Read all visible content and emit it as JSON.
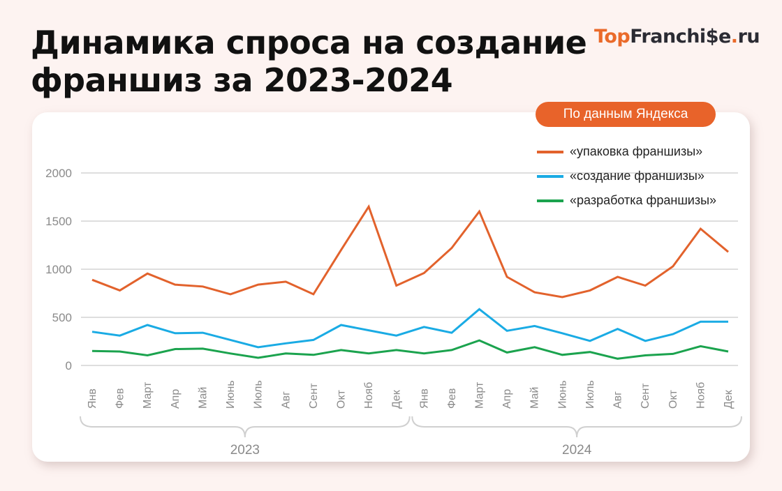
{
  "header": {
    "title_line1": "Динамика спроса на создание",
    "title_line2": "франшиз за 2023-2024"
  },
  "logo": {
    "part1": "Top",
    "part2": "Franchi",
    "part3": "e",
    "dot": ".",
    "tld": "ru",
    "full_text": "TopFranchise.ru"
  },
  "badge": {
    "label": "По данным Яндекса"
  },
  "colors": {
    "background": "#FDF3F1",
    "accent": "#E8632A",
    "series_orange": "#E2622C",
    "series_blue": "#1AABE4",
    "series_green": "#1BA34E",
    "grid": "#D4D4D4",
    "axis_text": "#8A8A8A"
  },
  "chart_data": {
    "type": "line",
    "title": "Динамика спроса на создание франшиз за 2023-2024",
    "subtitle": "По данным Яндекса",
    "xlabel": "",
    "ylabel": "",
    "ylim": [
      0,
      2000
    ],
    "yticks": [
      0,
      500,
      1000,
      1500,
      2000
    ],
    "grid": true,
    "legend_position": "top-right",
    "year_groups": [
      {
        "label": "2023",
        "from": 0,
        "to": 11
      },
      {
        "label": "2024",
        "from": 12,
        "to": 23
      }
    ],
    "categories": [
      "Янв",
      "Фев",
      "Март",
      "Апр",
      "Май",
      "Июнь",
      "Июль",
      "Авг",
      "Сент",
      "Окт",
      "Нояб",
      "Дек",
      "Янв",
      "Фев",
      "Март",
      "Апр",
      "Май",
      "Июнь",
      "Июль",
      "Авг",
      "Сент",
      "Окт",
      "Нояб",
      "Дек"
    ],
    "series": [
      {
        "name": "«упаковка франшизы»",
        "color": "#E2622C",
        "values": [
          890,
          780,
          955,
          840,
          820,
          740,
          840,
          870,
          740,
          1200,
          1650,
          830,
          960,
          1220,
          1600,
          920,
          760,
          710,
          780,
          920,
          830,
          1030,
          1420,
          1180
        ]
      },
      {
        "name": "«создание франшизы»",
        "color": "#1AABE4",
        "values": [
          350,
          310,
          420,
          335,
          340,
          265,
          190,
          230,
          265,
          420,
          365,
          310,
          400,
          340,
          585,
          360,
          410,
          335,
          255,
          380,
          255,
          325,
          455,
          455
        ]
      },
      {
        "name": "«разработка франшизы»",
        "color": "#1BA34E",
        "values": [
          150,
          145,
          105,
          170,
          175,
          125,
          80,
          125,
          110,
          160,
          125,
          160,
          125,
          160,
          260,
          135,
          190,
          110,
          140,
          70,
          105,
          120,
          200,
          145
        ]
      }
    ]
  }
}
